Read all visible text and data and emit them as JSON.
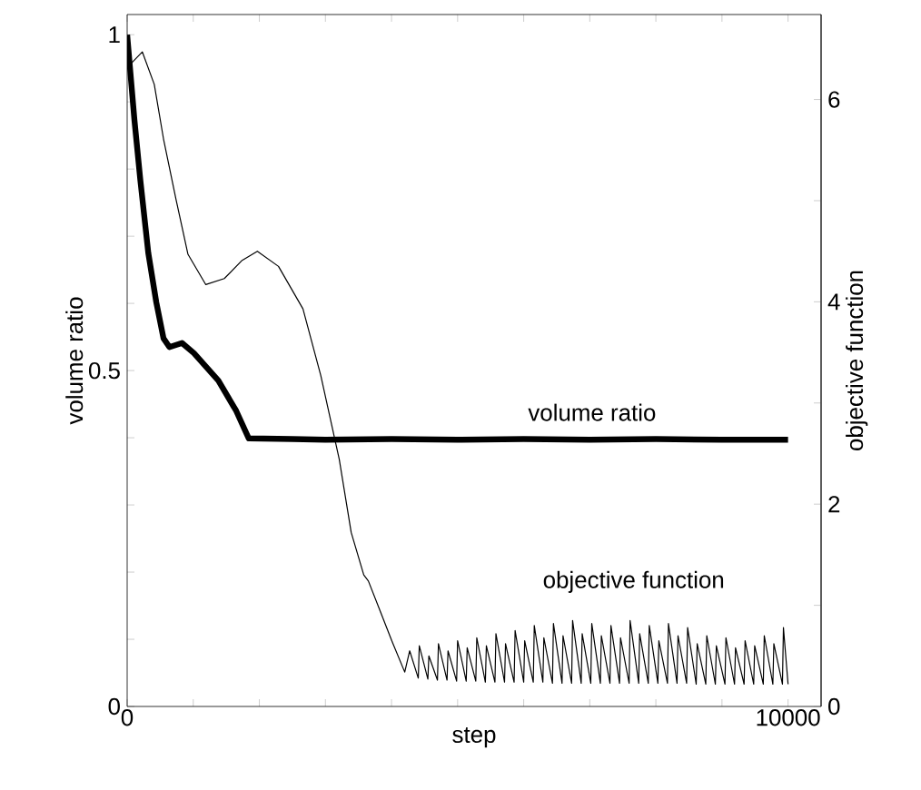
{
  "chart_data": {
    "type": "line",
    "xlabel": "step",
    "ylabel": "volume ratio",
    "y2label": "objective function",
    "xlim": [
      0,
      10500
    ],
    "ylim": [
      0,
      1.03
    ],
    "y2lim": [
      0,
      6.84
    ],
    "xticks": [
      0,
      {
        "value": 1000,
        "label": null
      },
      {
        "value": 2000,
        "label": null
      },
      {
        "value": 3000,
        "label": null
      },
      {
        "value": 4000,
        "label": null
      },
      {
        "value": 5000,
        "label": null
      },
      {
        "value": 6000,
        "label": null
      },
      {
        "value": 7000,
        "label": null
      },
      {
        "value": 8000,
        "label": null
      },
      {
        "value": 9000,
        "label": null
      },
      10000
    ],
    "yticks": [
      0,
      {
        "value": 0.1,
        "label": null
      },
      {
        "value": 0.2,
        "label": null
      },
      {
        "value": 0.3,
        "label": null
      },
      {
        "value": 0.4,
        "label": null
      },
      0.5,
      {
        "value": 0.6,
        "label": null
      },
      {
        "value": 0.7,
        "label": null
      },
      {
        "value": 0.8,
        "label": null
      },
      {
        "value": 0.9,
        "label": null
      },
      1
    ],
    "y2ticks": [
      0,
      {
        "value": 1,
        "label": null
      },
      2,
      {
        "value": 3,
        "label": null
      },
      4,
      {
        "value": 5,
        "label": null
      },
      6
    ],
    "grid": false,
    "marker": "none",
    "line_style": "solid",
    "series": [
      {
        "name": "volume ratio",
        "color": "#000000",
        "x": [
          0,
          110,
          200,
          320,
          440,
          550,
          640,
          830,
          1010,
          1380,
          1650,
          1840,
          2500,
          3000,
          4000,
          5000,
          6000,
          7000,
          8000,
          9000,
          10000
        ],
        "values": [
          1.0,
          0.873,
          0.783,
          0.675,
          0.602,
          0.548,
          0.535,
          0.541,
          0.526,
          0.485,
          0.44,
          0.399,
          0.398,
          0.397,
          0.398,
          0.397,
          0.398,
          0.397,
          0.398,
          0.397,
          0.397
        ]
      },
      {
        "name": "objective function",
        "color": "#000000",
        "axis": "y2",
        "x": [
          20,
          230,
          410,
          550,
          740,
          920,
          1190,
          1470,
          1740,
          1970,
          2290,
          2660,
          2930,
          3210,
          3390,
          3580,
          3650,
          3830,
          4010,
          4200,
          4275,
          4405,
          4420,
          4550,
          4565,
          4695,
          4710,
          4840,
          4855,
          4985,
          5000,
          5130,
          5145,
          5275,
          5290,
          5420,
          5435,
          5565,
          5580,
          5710,
          5725,
          5855,
          5870,
          6000,
          6015,
          6145,
          6160,
          6290,
          6305,
          6435,
          6450,
          6580,
          6595,
          6725,
          6740,
          6870,
          6885,
          7015,
          7030,
          7160,
          7175,
          7305,
          7320,
          7450,
          7465,
          7595,
          7610,
          7740,
          7755,
          7885,
          7900,
          8030,
          8045,
          8175,
          8190,
          8320,
          8335,
          8465,
          8480,
          8610,
          8625,
          8755,
          8770,
          8900,
          8915,
          9045,
          9060,
          9190,
          9205,
          9335,
          9350,
          9480,
          9495,
          9625,
          9640,
          9770,
          9785,
          9915,
          9930,
          10000
        ],
        "values": [
          6.33,
          6.47,
          6.15,
          5.61,
          5.01,
          4.47,
          4.17,
          4.23,
          4.41,
          4.5,
          4.35,
          3.93,
          3.27,
          2.44,
          1.72,
          1.3,
          1.24,
          0.94,
          0.64,
          0.34,
          0.55,
          0.28,
          0.6,
          0.27,
          0.5,
          0.26,
          0.62,
          0.26,
          0.55,
          0.25,
          0.65,
          0.25,
          0.58,
          0.25,
          0.68,
          0.24,
          0.6,
          0.24,
          0.72,
          0.24,
          0.62,
          0.24,
          0.75,
          0.24,
          0.65,
          0.24,
          0.8,
          0.24,
          0.68,
          0.23,
          0.82,
          0.23,
          0.7,
          0.23,
          0.85,
          0.23,
          0.72,
          0.23,
          0.82,
          0.23,
          0.7,
          0.23,
          0.8,
          0.23,
          0.68,
          0.23,
          0.85,
          0.23,
          0.72,
          0.23,
          0.8,
          0.23,
          0.65,
          0.23,
          0.82,
          0.23,
          0.7,
          0.23,
          0.78,
          0.22,
          0.62,
          0.22,
          0.7,
          0.22,
          0.6,
          0.22,
          0.68,
          0.22,
          0.58,
          0.22,
          0.65,
          0.22,
          0.6,
          0.22,
          0.7,
          0.22,
          0.62,
          0.22,
          0.78,
          0.22
        ]
      }
    ]
  }
}
